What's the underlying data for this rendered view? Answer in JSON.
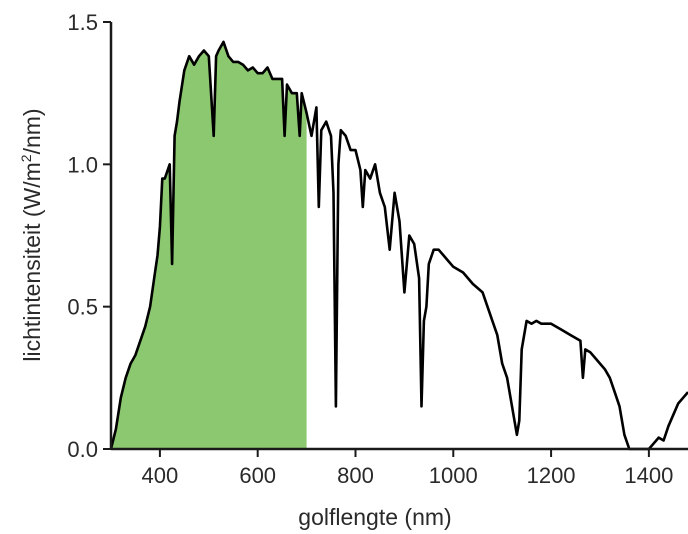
{
  "chart_data": {
    "type": "line",
    "title": "",
    "xlabel": "golflengte (nm)",
    "ylabel_main": "lichtintensiteit (W/m",
    "ylabel_sup": "2",
    "ylabel_end": "/nm)",
    "xlim": [
      300,
      1480
    ],
    "ylim": [
      0,
      1.5
    ],
    "x_ticks": [
      400,
      600,
      800,
      1000,
      1200,
      1400
    ],
    "x_tick_labels": [
      "400",
      "600",
      "800",
      "1000",
      "1200",
      "1400"
    ],
    "y_ticks": [
      0.0,
      0.5,
      1.0,
      1.5
    ],
    "y_tick_labels": [
      "0.0",
      "0.5",
      "1.0",
      "1.5"
    ],
    "grid": false,
    "shaded_region": {
      "x_from": 400,
      "x_to": 700,
      "color": "#8cc870"
    },
    "line_color": "#000000",
    "series": [
      {
        "x": [
          300,
          310,
          320,
          330,
          340,
          350,
          360,
          370,
          380,
          390,
          395,
          400,
          405,
          410,
          420,
          425,
          430,
          435,
          440,
          450,
          460,
          470,
          480,
          490,
          500,
          510,
          515,
          520,
          530,
          540,
          550,
          560,
          570,
          580,
          590,
          600,
          610,
          620,
          630,
          640,
          650,
          655,
          660,
          670,
          680,
          686,
          690,
          700,
          710,
          720,
          725,
          730,
          740,
          750,
          755,
          760,
          765,
          770,
          780,
          790,
          800,
          810,
          815,
          820,
          830,
          840,
          850,
          860,
          870,
          880,
          890,
          900,
          910,
          920,
          930,
          935,
          940,
          945,
          950,
          960,
          970,
          980,
          990,
          1000,
          1020,
          1040,
          1060,
          1070,
          1080,
          1090,
          1100,
          1110,
          1120,
          1130,
          1135,
          1140,
          1150,
          1160,
          1170,
          1180,
          1200,
          1220,
          1240,
          1260,
          1265,
          1270,
          1280,
          1290,
          1300,
          1310,
          1320,
          1330,
          1340,
          1350,
          1360,
          1400,
          1410,
          1420,
          1430,
          1440,
          1450,
          1460,
          1470,
          1480
        ],
        "y": [
          0.0,
          0.07,
          0.18,
          0.25,
          0.3,
          0.33,
          0.38,
          0.43,
          0.5,
          0.62,
          0.68,
          0.78,
          0.95,
          0.95,
          1.0,
          0.65,
          1.1,
          1.15,
          1.22,
          1.33,
          1.38,
          1.35,
          1.38,
          1.4,
          1.38,
          1.1,
          1.38,
          1.4,
          1.43,
          1.38,
          1.36,
          1.36,
          1.35,
          1.33,
          1.34,
          1.32,
          1.32,
          1.34,
          1.3,
          1.3,
          1.3,
          1.1,
          1.28,
          1.25,
          1.25,
          1.1,
          1.25,
          1.18,
          1.1,
          1.2,
          0.85,
          1.12,
          1.15,
          1.1,
          0.9,
          0.15,
          1.0,
          1.12,
          1.1,
          1.05,
          1.05,
          0.98,
          0.85,
          0.98,
          0.95,
          1.0,
          0.9,
          0.85,
          0.7,
          0.9,
          0.8,
          0.55,
          0.75,
          0.72,
          0.6,
          0.15,
          0.45,
          0.5,
          0.65,
          0.7,
          0.7,
          0.68,
          0.66,
          0.64,
          0.62,
          0.58,
          0.55,
          0.5,
          0.45,
          0.4,
          0.3,
          0.25,
          0.15,
          0.05,
          0.1,
          0.35,
          0.45,
          0.44,
          0.45,
          0.44,
          0.44,
          0.42,
          0.4,
          0.38,
          0.25,
          0.35,
          0.34,
          0.32,
          0.3,
          0.28,
          0.25,
          0.2,
          0.15,
          0.05,
          0.0,
          0.0,
          0.02,
          0.04,
          0.03,
          0.08,
          0.12,
          0.16,
          0.18,
          0.2
        ]
      }
    ]
  }
}
